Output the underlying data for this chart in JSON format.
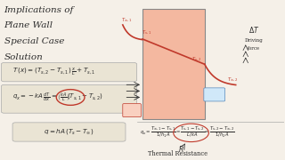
{
  "bg_color": "#f5f0e8",
  "title_lines": [
    "Implications of",
    "Plane Wall",
    "Special Case",
    "Solution"
  ],
  "text_color": "#2c2c2c",
  "line_color": "#c0392b",
  "wall_color": "#f4b8a0",
  "eq_bg": "#eae4d4",
  "hot_box_color": "#f9d0c0",
  "cold_box_color": "#d0e8f9",
  "cold_text_color": "#2060a0"
}
